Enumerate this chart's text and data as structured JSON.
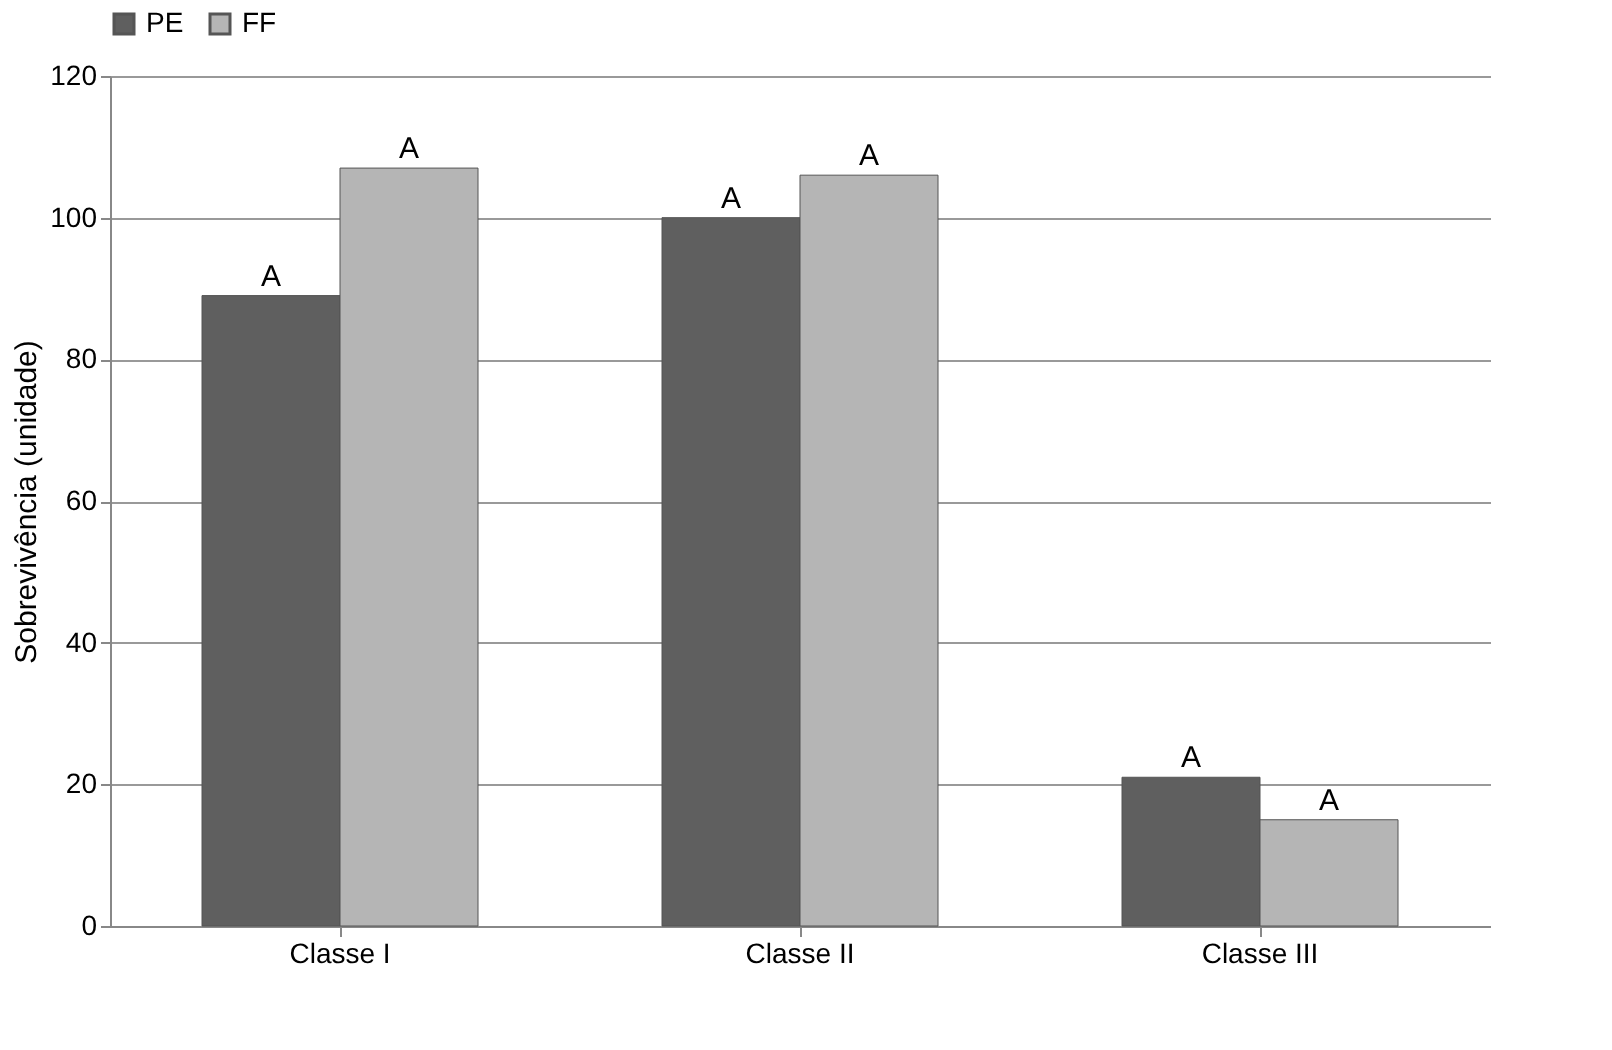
{
  "chart_data": {
    "type": "bar",
    "ylabel": "Sobrevivência (unidade)",
    "categories": [
      "Classe I",
      "Classe II",
      "Classe III"
    ],
    "series": [
      {
        "name": "PE",
        "color": "#5f5f5f",
        "values": [
          89,
          100,
          21
        ],
        "value_labels": [
          "A",
          "A",
          "A"
        ]
      },
      {
        "name": "FF",
        "color": "#b5b5b5",
        "values": [
          107,
          106,
          15
        ],
        "value_labels": [
          "A",
          "A",
          "A"
        ]
      }
    ],
    "ylim": [
      0,
      120
    ],
    "yticks": [
      0,
      20,
      40,
      60,
      80,
      100,
      120
    ],
    "grid": "y",
    "legend": "top"
  }
}
